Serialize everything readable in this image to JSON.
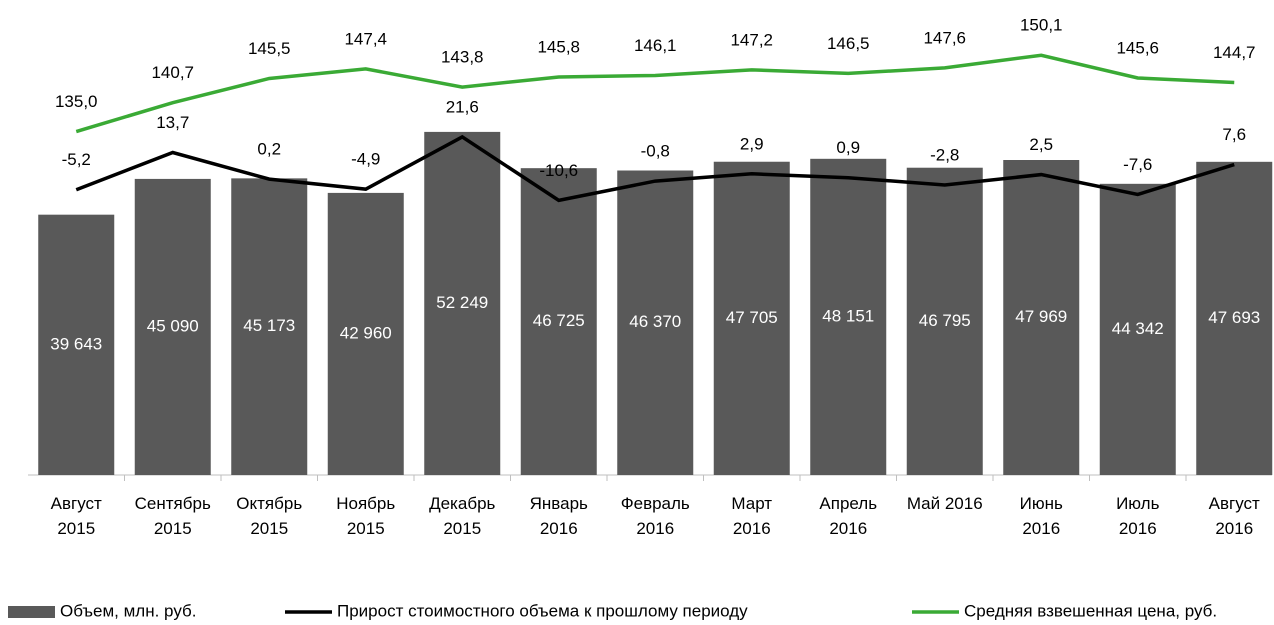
{
  "chart_data": {
    "type": "bar",
    "categories": [
      "Август\n2015",
      "Сентябрь\n2015",
      "Октябрь\n2015",
      "Ноябрь\n2015",
      "Декабрь\n2015",
      "Январь\n2016",
      "Февраль\n2016",
      "Март\n2016",
      "Апрель\n2016",
      "Май 2016",
      "Июнь\n2016",
      "Июль\n2016",
      "Август\n2016"
    ],
    "ylim": [
      0,
      60000
    ],
    "series": [
      {
        "name": "Объем, млн. руб.",
        "type": "bar",
        "color": "#595959",
        "values": [
          39643,
          45090,
          45173,
          42960,
          52249,
          46725,
          46370,
          47705,
          48151,
          46795,
          47969,
          44342,
          47693
        ],
        "value_labels": [
          "39 643",
          "45 090",
          "45 173",
          "42 960",
          "52 249",
          "46 725",
          "46 370",
          "47 705",
          "48 151",
          "46 795",
          "47 969",
          "44 342",
          "47 693"
        ]
      },
      {
        "name": "Прирост стоимостного объема к прошлому периоду",
        "type": "line",
        "color": "#000000",
        "ylim": [
          -150,
          50
        ],
        "values": [
          -5.2,
          13.7,
          0.2,
          -4.9,
          21.6,
          -10.6,
          -0.8,
          2.9,
          0.9,
          -2.8,
          2.5,
          -7.6,
          7.6
        ],
        "value_labels": [
          "-5,2",
          "13,7",
          "0,2",
          "-4,9",
          "21,6",
          "-10,6",
          "-0,8",
          "2,9",
          "0,9",
          "-2,8",
          "2,5",
          "-7,6",
          "7,6"
        ]
      },
      {
        "name": "Средняя взвешенная цена, руб.",
        "type": "line",
        "color": "#3aaa35",
        "ylim": [
          67,
          145
        ],
        "values": [
          135.0,
          140.7,
          145.5,
          147.4,
          143.8,
          145.8,
          146.1,
          147.2,
          146.5,
          147.6,
          150.1,
          145.6,
          144.7
        ],
        "value_labels": [
          "135,0",
          "140,7",
          "145,5",
          "147,4",
          "143,8",
          "145,8",
          "146,1",
          "147,2",
          "146,5",
          "147,6",
          "150,1",
          "145,6",
          "144,7"
        ]
      }
    ]
  }
}
